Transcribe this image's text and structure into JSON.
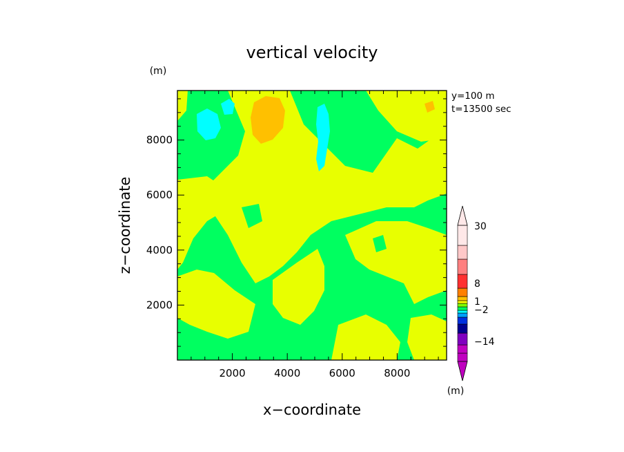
{
  "chart_data": {
    "type": "heatmap",
    "title": "vertical velocity",
    "xlabel": "x−coordinate",
    "ylabel": "z−coordinate",
    "y_unit": "(m)",
    "colorbar_unit": "(m)",
    "annotations": [
      "y=100  m",
      "t=13500  sec"
    ],
    "xlim": [
      0,
      9800
    ],
    "ylim": [
      0,
      9800
    ],
    "x_ticks": [
      2000,
      4000,
      6000,
      8000
    ],
    "y_ticks": [
      2000,
      4000,
      6000,
      8000
    ],
    "x_ticks_labels": [
      "2000",
      "4000",
      "6000",
      "8000"
    ],
    "y_ticks_labels": [
      "2000",
      "4000",
      "6000",
      "8000"
    ],
    "grid": false,
    "colorbar": {
      "placement": "right",
      "labels": [
        {
          "value": 30,
          "text": "30"
        },
        {
          "value": 8,
          "text": "8"
        },
        {
          "value": 1,
          "text": "1"
        },
        {
          "value": -2,
          "text": "−2"
        },
        {
          "value": -14,
          "text": "−14"
        }
      ],
      "colors_bottom_to_top": [
        "#c000c0",
        "#c000c0",
        "#8000c0",
        "#000090",
        "#0030e0",
        "#00a0ff",
        "#00ffff",
        "#00ff60",
        "#80ff00",
        "#ffff00",
        "#ffc000",
        "#ff8000",
        "#ff3030",
        "#ff8080",
        "#ffc8c8",
        "#ffe8e8"
      ]
    },
    "dominant_regions": [
      {
        "name": "w < 0 (green)",
        "color": "#00ff60"
      },
      {
        "name": "w > 0 (yellow)",
        "color": "#e8ff00"
      },
      {
        "name": "updraft core (orange)",
        "color": "#ffc000"
      },
      {
        "name": "downdraft core (cyan)",
        "color": "#00ffff"
      }
    ]
  }
}
